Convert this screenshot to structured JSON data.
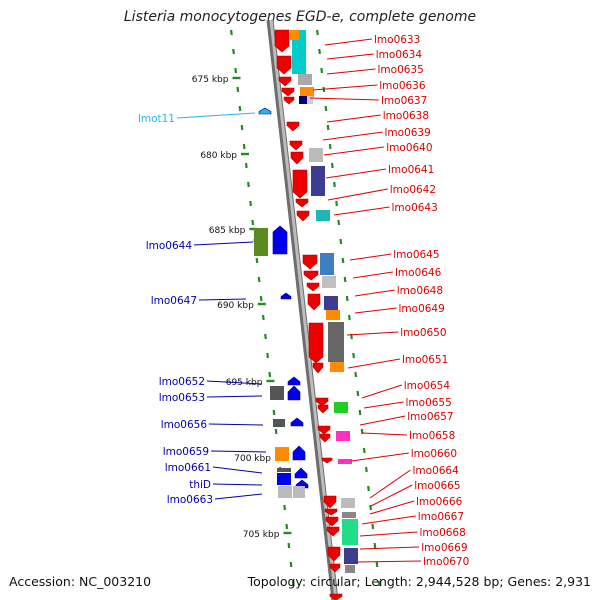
{
  "title": "Listeria monocytogenes EGD-e, complete genome",
  "footer": {
    "accession": "Accession: NC_003210",
    "topology": "Topology: circular; Length: 2,944,528 bp; Genes: 2,931"
  },
  "ticks": [
    {
      "label": "675 kbp"
    },
    {
      "label": "680 kbp"
    },
    {
      "label": "685 kbp"
    },
    {
      "label": "690 kbp"
    },
    {
      "label": "695 kbp"
    },
    {
      "label": "700 kbp"
    },
    {
      "label": "705 kbp"
    }
  ],
  "left_labels": [
    {
      "text": "lmot11",
      "color": "#29b6e6"
    },
    {
      "text": "lmo0644",
      "color": "#0000aa"
    },
    {
      "text": "lmo0647",
      "color": "#0000aa"
    },
    {
      "text": "lmo0652",
      "color": "#0000aa"
    },
    {
      "text": "lmo0653",
      "color": "#0000aa"
    },
    {
      "text": "lmo0656",
      "color": "#0000aa"
    },
    {
      "text": "lmo0659",
      "color": "#0000aa"
    },
    {
      "text": "lmo0661",
      "color": "#0000aa"
    },
    {
      "text": "thiD",
      "color": "#0000aa"
    },
    {
      "text": "lmo0663",
      "color": "#0000aa"
    }
  ],
  "right_labels": [
    {
      "text": "lmo0633"
    },
    {
      "text": "lmo0634"
    },
    {
      "text": "lmo0635"
    },
    {
      "text": "lmo0636"
    },
    {
      "text": "lmo0637"
    },
    {
      "text": "lmo0638"
    },
    {
      "text": "lmo0639"
    },
    {
      "text": "lmo0640"
    },
    {
      "text": "lmo0641"
    },
    {
      "text": "lmo0642"
    },
    {
      "text": "lmo0643"
    },
    {
      "text": "lmo0645"
    },
    {
      "text": "lmo0646"
    },
    {
      "text": "lmo0648"
    },
    {
      "text": "lmo0649"
    },
    {
      "text": "lmo0650"
    },
    {
      "text": "lmo0651"
    },
    {
      "text": "lmo0654"
    },
    {
      "text": "lmo0655"
    },
    {
      "text": "lmo0657"
    },
    {
      "text": "lmo0658"
    },
    {
      "text": "lmo0660"
    },
    {
      "text": "lmo0664"
    },
    {
      "text": "lmo0665"
    },
    {
      "text": "lmo0666"
    },
    {
      "text": "lmo0667"
    },
    {
      "text": "lmo0668"
    },
    {
      "text": "lmo0669"
    },
    {
      "text": "lmo0670"
    }
  ],
  "colors": {
    "backbone": "#8c8c8c",
    "plus_strand_gene": "#0000ee",
    "minus_strand_gene": "#ee0000",
    "rna_gene": "#29b6e6",
    "tick": "#228b22",
    "right_label": "#dd0000"
  }
}
